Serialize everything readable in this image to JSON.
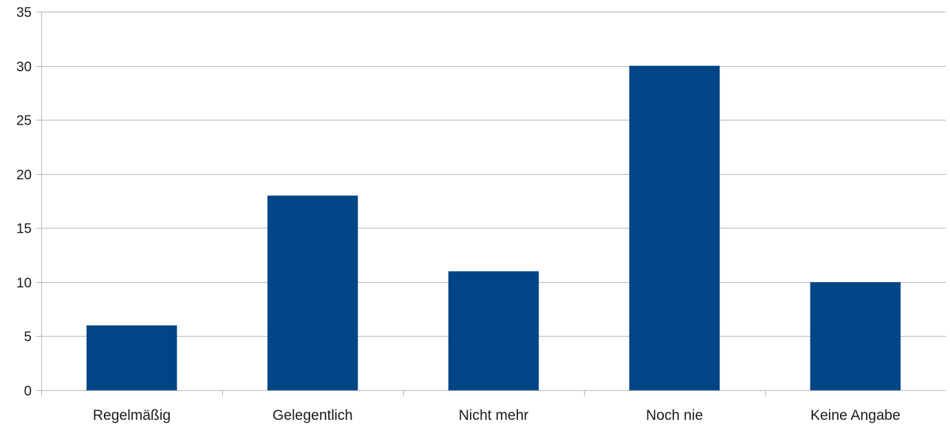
{
  "chart_data": {
    "type": "bar",
    "categories": [
      "Regelmäßig",
      "Gelegentlich",
      "Nicht mehr",
      "Noch nie",
      "Keine Angabe"
    ],
    "values": [
      6,
      18,
      11,
      30,
      10
    ],
    "ylim": [
      0,
      35
    ],
    "yticks": [
      0,
      5,
      10,
      15,
      20,
      25,
      30,
      35
    ],
    "grid": true,
    "bar_color": "#004586",
    "title": "",
    "xlabel": "",
    "ylabel": ""
  }
}
